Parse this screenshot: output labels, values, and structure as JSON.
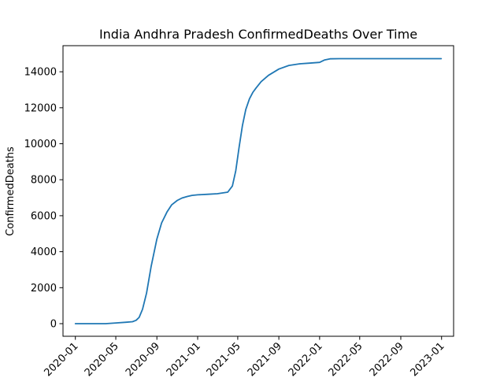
{
  "chart_data": {
    "type": "line",
    "title": "India Andhra Pradesh ConfirmedDeaths Over Time",
    "xlabel": "",
    "ylabel": "ConfirmedDeaths",
    "xlim": [
      "2019-11-25",
      "2023-02-06"
    ],
    "ylim": [
      -700,
      15450
    ],
    "grid": false,
    "x_ticks": [
      "2020-01",
      "2020-05",
      "2020-09",
      "2021-01",
      "2021-05",
      "2021-09",
      "2022-01",
      "2022-05",
      "2022-09",
      "2023-01"
    ],
    "y_ticks": [
      0,
      2000,
      4000,
      6000,
      8000,
      10000,
      12000,
      14000
    ],
    "series": [
      {
        "color": "#1f77b4",
        "x": [
          "2020-01-01",
          "2020-03-01",
          "2020-04-01",
          "2020-05-01",
          "2020-06-01",
          "2020-06-20",
          "2020-07-01",
          "2020-07-10",
          "2020-07-20",
          "2020-08-01",
          "2020-08-15",
          "2020-09-01",
          "2020-09-15",
          "2020-10-01",
          "2020-10-15",
          "2020-11-01",
          "2020-11-15",
          "2020-12-01",
          "2020-12-15",
          "2021-01-01",
          "2021-02-01",
          "2021-03-01",
          "2021-04-01",
          "2021-04-15",
          "2021-04-25",
          "2021-05-05",
          "2021-05-15",
          "2021-05-25",
          "2021-06-05",
          "2021-06-15",
          "2021-06-25",
          "2021-07-10",
          "2021-08-01",
          "2021-09-01",
          "2021-10-01",
          "2021-11-01",
          "2021-12-01",
          "2022-01-01",
          "2022-01-15",
          "2022-02-01",
          "2022-03-01",
          "2022-06-01",
          "2022-12-31"
        ],
        "y": [
          0,
          0,
          0,
          40,
          80,
          110,
          190,
          350,
          800,
          1700,
          3200,
          4700,
          5600,
          6200,
          6600,
          6850,
          6980,
          7070,
          7130,
          7160,
          7190,
          7220,
          7310,
          7650,
          8500,
          9800,
          11000,
          11900,
          12500,
          12850,
          13100,
          13450,
          13800,
          14150,
          14350,
          14440,
          14480,
          14520,
          14650,
          14720,
          14730,
          14730,
          14730
        ]
      }
    ]
  }
}
